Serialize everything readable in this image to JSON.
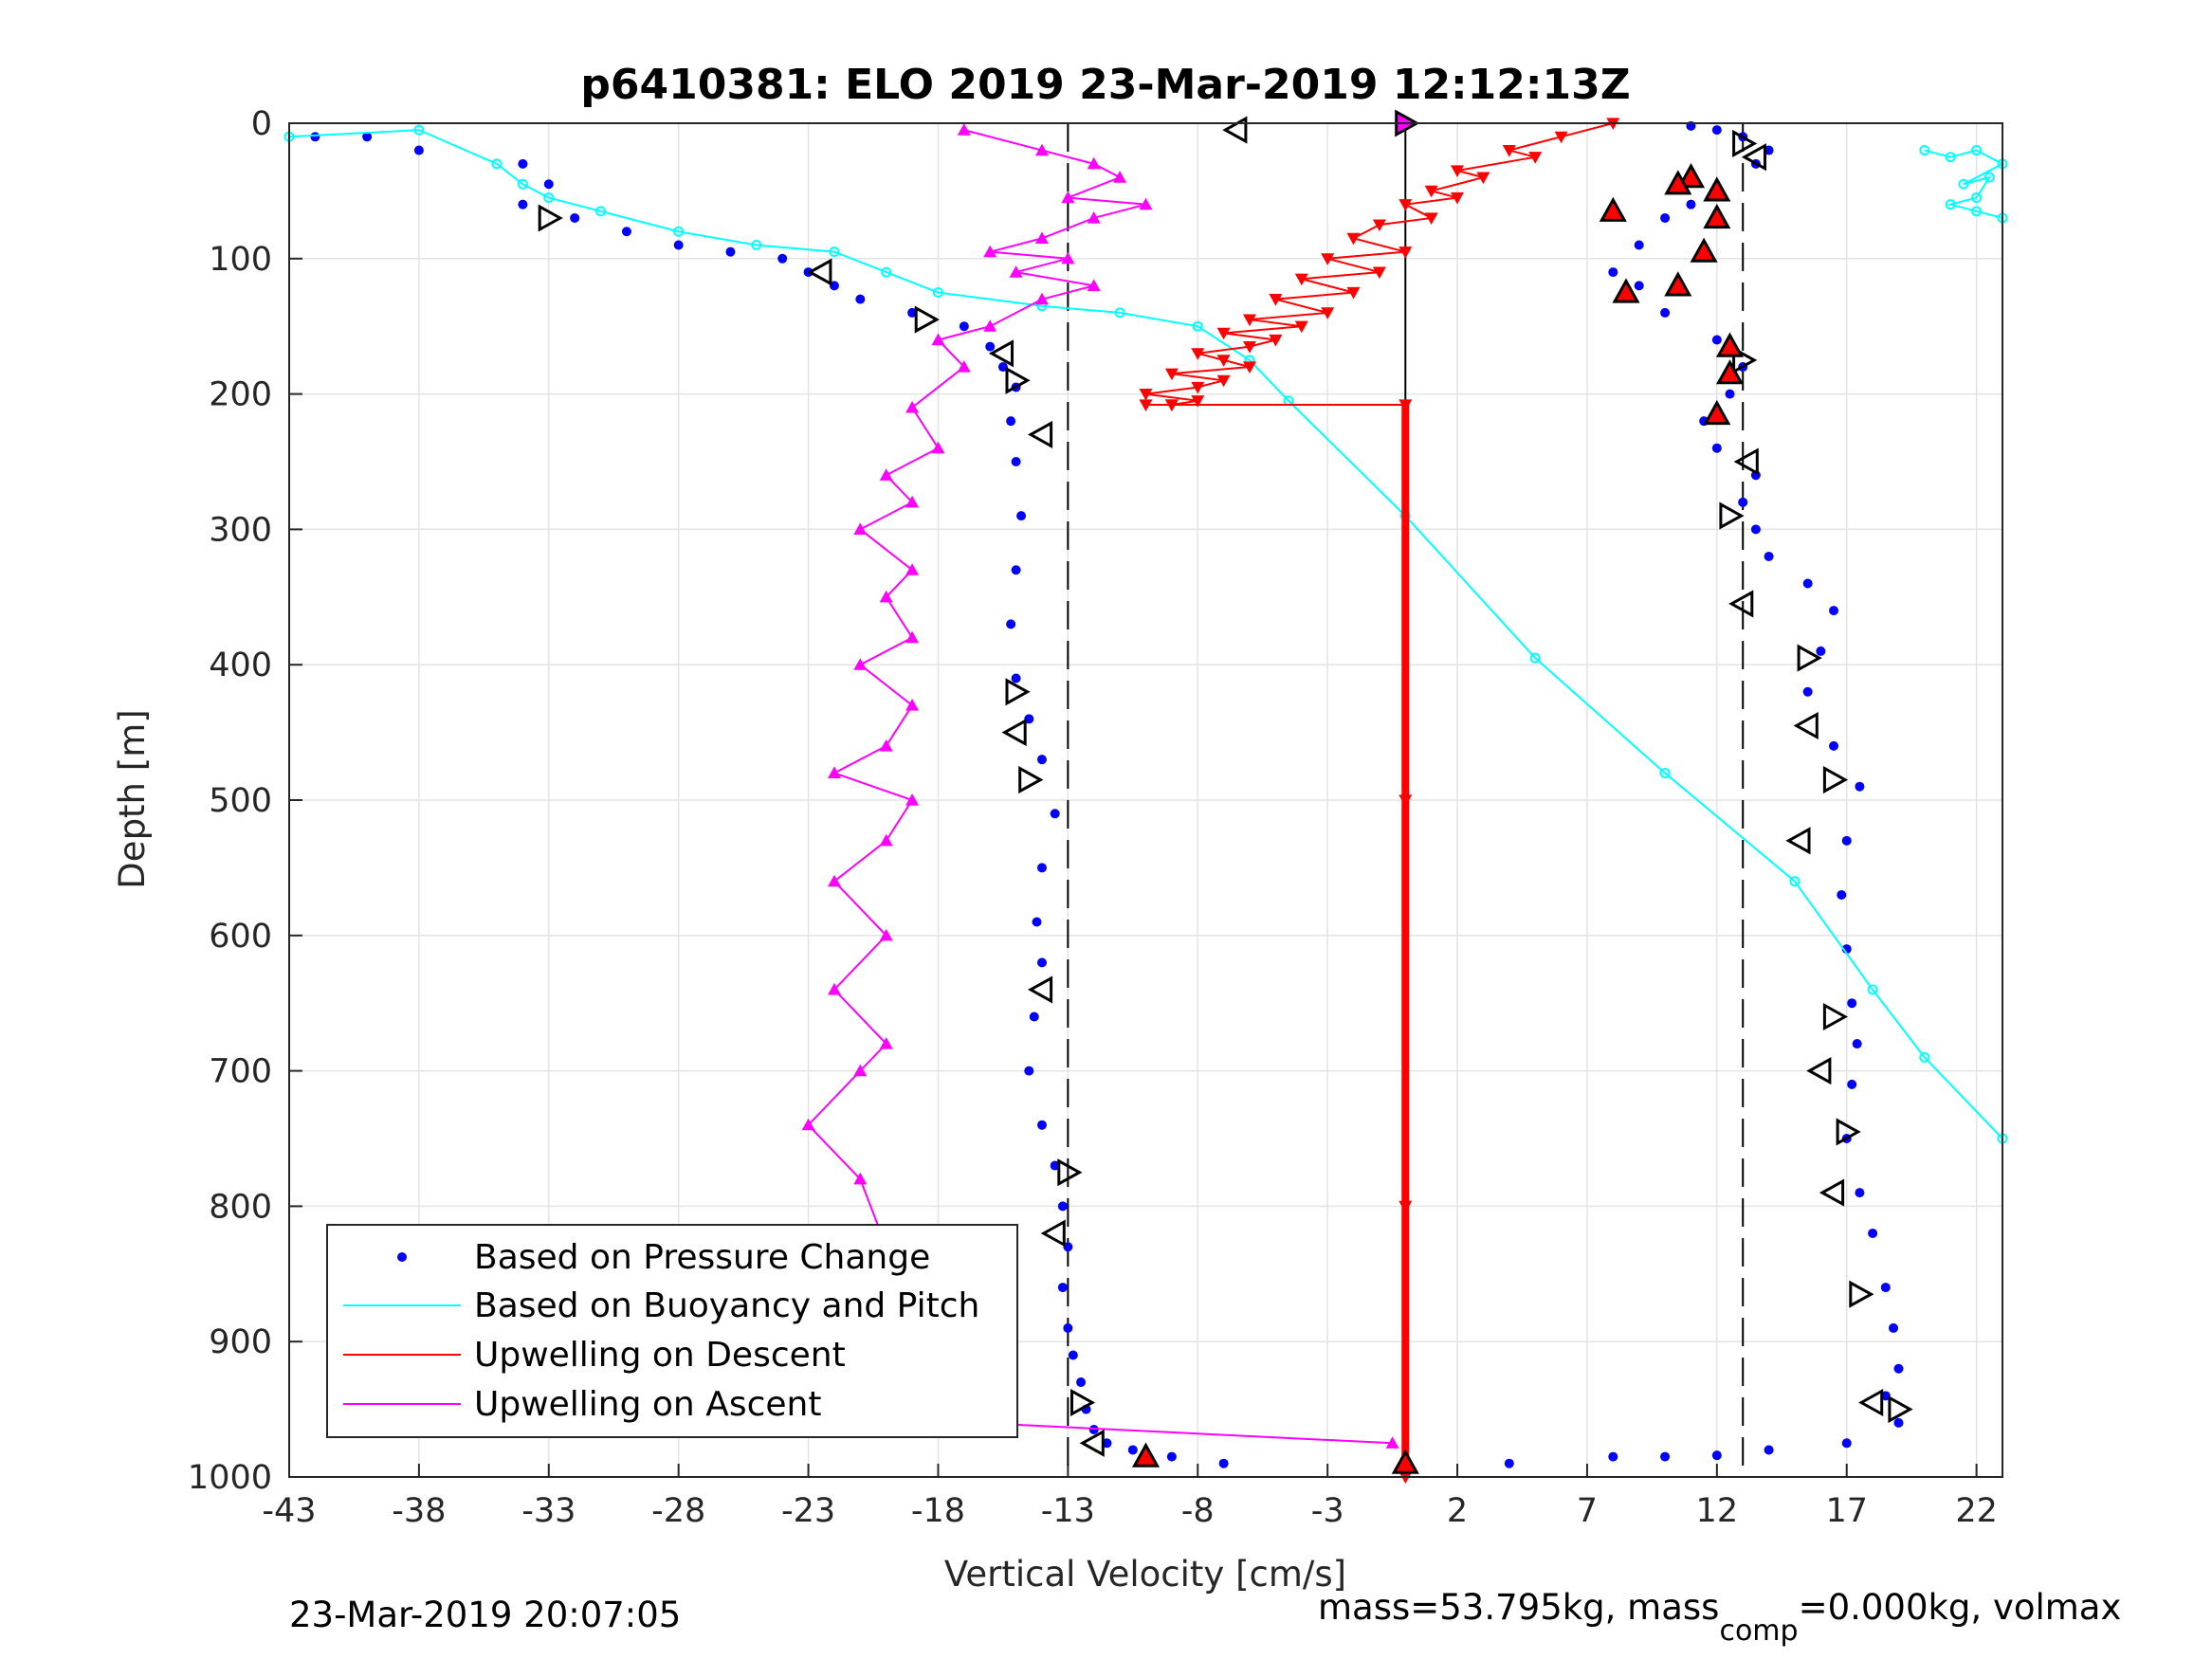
{
  "chart_data": {
    "type": "scatter",
    "title": "p6410381: ELO 2019 23-Mar-2019 12:12:13Z",
    "xlabel": "Vertical Velocity [cm/s]",
    "ylabel": "Depth [m]",
    "xlim": [
      -43,
      23
    ],
    "ylim": [
      1000,
      0
    ],
    "y_reversed": true,
    "grid": true,
    "xticks": [
      -43,
      -38,
      -33,
      -28,
      -23,
      -18,
      -13,
      -8,
      -3,
      2,
      7,
      12,
      17,
      22
    ],
    "yticks": [
      0,
      100,
      200,
      300,
      400,
      500,
      600,
      700,
      800,
      900,
      1000
    ],
    "xtick_labels": [
      "-43",
      "-38",
      "-33",
      "-28",
      "-23",
      "-18",
      "-13",
      "-8",
      "-3",
      "2",
      "7",
      "12",
      "17",
      "22"
    ],
    "ytick_labels": [
      "0",
      "100",
      "200",
      "300",
      "400",
      "500",
      "600",
      "700",
      "800",
      "900",
      "1000"
    ],
    "reference_lines": [
      {
        "x": -13,
        "style": "dashed",
        "color": "#000000"
      },
      {
        "x": 0,
        "style": "solid",
        "color": "#000000"
      },
      {
        "x": 13,
        "style": "dashed",
        "color": "#000000"
      }
    ],
    "legend": {
      "placement": "bottom-left",
      "entries": [
        {
          "label": "Based on Pressure Change",
          "color": "#0000ff",
          "marker": "dot"
        },
        {
          "label": "Based on Buoyancy and Pitch",
          "color": "#00ffff",
          "marker": "line"
        },
        {
          "label": "Upwelling on Descent",
          "color": "#ff0000",
          "marker": "line"
        },
        {
          "label": "Upwelling on Ascent",
          "color": "#ff00ff",
          "marker": "line"
        }
      ]
    },
    "series": [
      {
        "name": "Based on Pressure Change",
        "color": "#0000ff",
        "part": "descent",
        "x": [
          -42,
          -40,
          -38,
          -34,
          -33,
          -34,
          -32,
          -30,
          -28,
          -26,
          -24,
          -23,
          -22,
          -21,
          -19,
          -17,
          -16,
          -15.5,
          -15,
          -15.2,
          -15,
          -14.8,
          -15,
          -15.2,
          -15,
          -14.5,
          -14,
          -13.5,
          -14,
          -14.2,
          -14,
          -14.3,
          -14.5,
          -14,
          -13.5,
          -13.2,
          -13,
          -13.2,
          -13,
          -12.8,
          -12.5,
          -12.3,
          -12,
          -11.5,
          -10.5,
          -9,
          -7
        ],
        "y": [
          10,
          10,
          20,
          30,
          45,
          60,
          70,
          80,
          90,
          95,
          100,
          110,
          120,
          130,
          140,
          150,
          165,
          180,
          195,
          220,
          250,
          290,
          330,
          370,
          410,
          440,
          470,
          510,
          550,
          590,
          620,
          660,
          700,
          740,
          770,
          800,
          830,
          860,
          890,
          910,
          930,
          950,
          965,
          975,
          980,
          985,
          990
        ]
      },
      {
        "name": "Based on Pressure Change",
        "color": "#0000ff",
        "part": "ascent",
        "x": [
          4,
          8,
          10,
          12,
          14,
          17,
          19,
          18.5,
          19,
          18.8,
          18.5,
          18,
          17.5,
          17,
          17.2,
          17.4,
          17.2,
          17,
          16.8,
          17,
          17.5,
          16.5,
          15.5,
          16,
          16.5,
          15.5,
          14,
          13.5,
          13,
          13.5,
          12,
          11.5,
          12.5,
          13,
          12,
          10,
          9,
          8,
          9,
          10,
          11,
          12,
          13.5,
          14,
          13,
          12,
          11
        ],
        "y": [
          990,
          985,
          985,
          984,
          980,
          975,
          960,
          940,
          920,
          890,
          860,
          820,
          790,
          750,
          710,
          680,
          650,
          610,
          570,
          530,
          490,
          460,
          420,
          390,
          360,
          340,
          320,
          300,
          280,
          260,
          240,
          220,
          200,
          180,
          160,
          140,
          120,
          110,
          90,
          70,
          60,
          50,
          30,
          20,
          10,
          5,
          2
        ]
      },
      {
        "name": "Based on Buoyancy and Pitch",
        "color": "#00ffff",
        "part": "descent",
        "x": [
          -43,
          -38,
          -35,
          -34,
          -33,
          -31,
          -28,
          -25,
          -22,
          -20,
          -18,
          -14,
          -11,
          -8,
          -6,
          -4.5,
          0,
          5,
          10,
          15,
          18,
          20,
          23
        ],
        "y": [
          10,
          5,
          30,
          45,
          55,
          65,
          80,
          90,
          95,
          110,
          125,
          135,
          140,
          150,
          175,
          205,
          290,
          395,
          480,
          560,
          640,
          690,
          750
        ]
      },
      {
        "name": "Based on Buoyancy and Pitch",
        "color": "#00ffff",
        "part": "ascent",
        "x": [
          20,
          21,
          22,
          23,
          21.5,
          22.5,
          22,
          21,
          22,
          23
        ],
        "y": [
          20,
          25,
          20,
          30,
          45,
          40,
          55,
          60,
          65,
          70
        ]
      },
      {
        "name": "Upwelling on Descent",
        "color": "#ff0000",
        "x": [
          8,
          6,
          4,
          5,
          2,
          3,
          1,
          2,
          0,
          1,
          -1,
          -2,
          0,
          -3,
          -1,
          -4,
          -2,
          -5,
          -3,
          -6,
          -4,
          -7,
          -5,
          -6,
          -8,
          -7,
          -6,
          -9,
          -7,
          -8,
          -10,
          -8,
          -9,
          -10,
          -9,
          0,
          0,
          0,
          0
        ],
        "y": [
          0,
          10,
          20,
          25,
          35,
          40,
          50,
          55,
          60,
          70,
          75,
          85,
          95,
          100,
          110,
          115,
          125,
          130,
          140,
          145,
          150,
          155,
          160,
          165,
          170,
          175,
          180,
          185,
          190,
          195,
          200,
          205,
          208,
          208,
          208,
          208,
          500,
          800,
          1000
        ]
      },
      {
        "name": "Upwelling on Ascent",
        "color": "#ff00ff",
        "x": [
          -17,
          -14,
          -12,
          -11,
          -13,
          -10,
          -12,
          -14,
          -16,
          -13,
          -15,
          -12,
          -14,
          -16,
          -18,
          -17,
          -19,
          -18,
          -20,
          -19,
          -21,
          -19,
          -20,
          -19,
          -21,
          -19,
          -20,
          -22,
          -19,
          -20,
          -22,
          -20,
          -22,
          -20,
          -21,
          -23,
          -21,
          -20,
          -18.5,
          -17.5,
          -16.5,
          -0.5
        ],
        "y": [
          5,
          20,
          30,
          40,
          55,
          60,
          70,
          85,
          95,
          100,
          110,
          120,
          130,
          150,
          160,
          180,
          210,
          240,
          260,
          280,
          300,
          330,
          350,
          380,
          400,
          430,
          460,
          480,
          500,
          530,
          560,
          600,
          640,
          680,
          700,
          740,
          780,
          830,
          880,
          930,
          960,
          975
        ]
      },
      {
        "name": "Triangle markers",
        "color": "#000000",
        "part": "descent",
        "x": [
          -6.5,
          -33,
          -22.5,
          -18.5,
          -15.5,
          -15,
          -14,
          -15,
          -15,
          -14.5,
          -14,
          -13,
          -13.5,
          -12.5,
          -12
        ],
        "y": [
          5,
          70,
          110,
          145,
          170,
          190,
          230,
          420,
          450,
          485,
          640,
          775,
          820,
          945,
          975
        ]
      },
      {
        "name": "Triangle markers",
        "color": "#000000",
        "part": "ascent",
        "x": [
          13,
          13.5,
          13,
          13.2,
          12.5,
          13,
          15.5,
          15.5,
          16.5,
          15.2,
          16.5,
          16,
          17,
          16.5,
          17.5,
          18,
          19
        ],
        "y": [
          15,
          25,
          175,
          250,
          290,
          355,
          395,
          445,
          485,
          530,
          660,
          700,
          745,
          790,
          865,
          945,
          950
        ]
      },
      {
        "name": "Red triangle markers",
        "color": "#ff0000",
        "x": [
          11,
          10.5,
          12,
          12,
          11.5,
          8,
          8.5,
          10.5,
          12.5,
          12.5,
          12,
          0,
          -10
        ],
        "y": [
          40,
          45,
          50,
          70,
          95,
          65,
          125,
          120,
          165,
          185,
          215,
          990,
          985
        ]
      }
    ]
  },
  "footer": {
    "left_text": "23-Mar-2019 20:07:05",
    "right_text_prefix": "mass=53.795kg, mass",
    "right_text_sub": "comp",
    "right_text_suffix": "=0.000kg, volmax"
  }
}
